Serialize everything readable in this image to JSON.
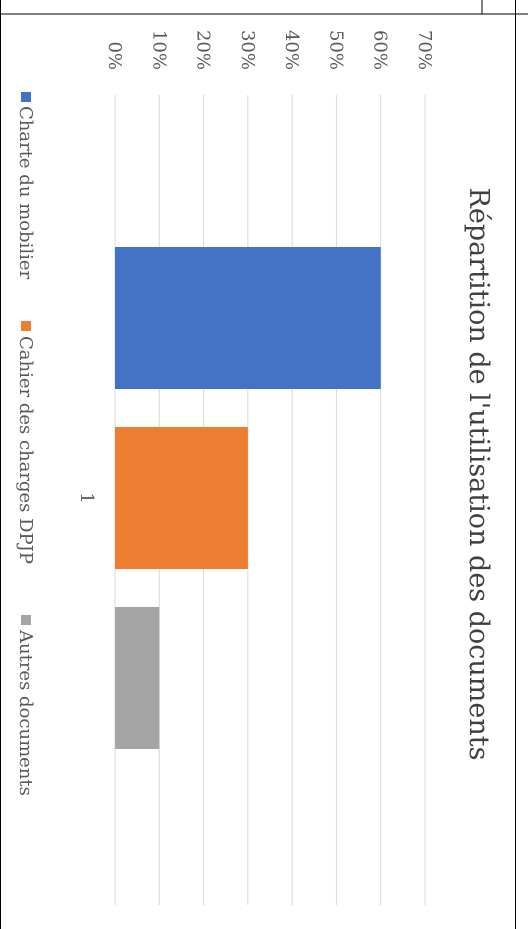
{
  "chart_data": {
    "type": "bar",
    "title": "Répartition de l'utilisation des documents",
    "categories": [
      "1"
    ],
    "series": [
      {
        "name": "Charte du mobilier",
        "values": [
          0.6
        ],
        "color": "#4472c4"
      },
      {
        "name": "Cahier des charges DPJP",
        "values": [
          0.3
        ],
        "color": "#ed7d31"
      },
      {
        "name": "Autres documents",
        "values": [
          0.1
        ],
        "color": "#a5a5a5"
      }
    ],
    "ylim": [
      0,
      0.7
    ],
    "y_ticks": [
      "0%",
      "10%",
      "20%",
      "30%",
      "40%",
      "50%",
      "60%",
      "70%"
    ],
    "grid": true,
    "legend": "bottom",
    "orientation": "rotated 90 degrees clockwise"
  }
}
